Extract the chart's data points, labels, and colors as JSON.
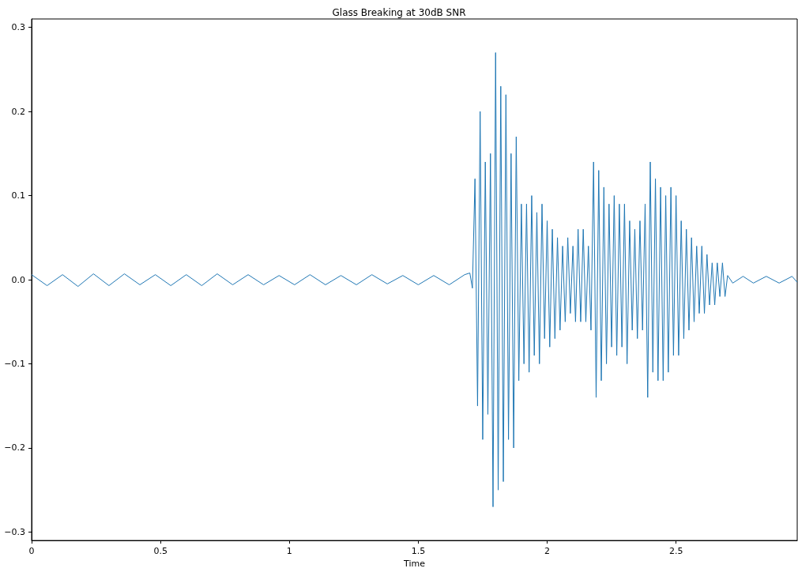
{
  "chart_data": {
    "type": "line",
    "title": "Glass Breaking at 30dB SNR",
    "xlabel": "Time",
    "x": [
      0,
      0.06,
      0.12,
      0.18,
      0.24,
      0.3,
      0.36,
      0.42,
      0.48,
      0.54,
      0.6,
      0.66,
      0.72,
      0.78,
      0.84,
      0.9,
      0.96,
      1.02,
      1.08,
      1.14,
      1.2,
      1.26,
      1.32,
      1.38,
      1.44,
      1.5,
      1.56,
      1.62,
      1.68,
      1.7,
      1.71,
      1.72,
      1.73,
      1.74,
      1.75,
      1.76,
      1.77,
      1.78,
      1.79,
      1.8,
      1.81,
      1.82,
      1.83,
      1.84,
      1.85,
      1.86,
      1.87,
      1.88,
      1.89,
      1.9,
      1.91,
      1.92,
      1.93,
      1.94,
      1.95,
      1.96,
      1.97,
      1.98,
      1.99,
      2,
      2.01,
      2.02,
      2.03,
      2.04,
      2.05,
      2.06,
      2.07,
      2.08,
      2.09,
      2.1,
      2.11,
      2.12,
      2.13,
      2.14,
      2.15,
      2.16,
      2.17,
      2.18,
      2.19,
      2.2,
      2.21,
      2.22,
      2.23,
      2.24,
      2.25,
      2.26,
      2.27,
      2.28,
      2.29,
      2.3,
      2.31,
      2.32,
      2.33,
      2.34,
      2.35,
      2.36,
      2.37,
      2.38,
      2.39,
      2.4,
      2.41,
      2.42,
      2.43,
      2.44,
      2.45,
      2.46,
      2.47,
      2.48,
      2.49,
      2.5,
      2.51,
      2.52,
      2.53,
      2.54,
      2.55,
      2.56,
      2.57,
      2.58,
      2.59,
      2.6,
      2.61,
      2.62,
      2.63,
      2.64,
      2.65,
      2.66,
      2.67,
      2.68,
      2.69,
      2.7,
      2.72,
      2.76,
      2.8,
      2.85,
      2.9,
      2.95,
      2.97
    ],
    "series": [
      {
        "color": "#1f77b4",
        "values": [
          0.006,
          -0.007,
          0.006,
          -0.008,
          0.007,
          -0.007,
          0.007,
          -0.006,
          0.006,
          -0.007,
          0.006,
          -0.007,
          0.007,
          -0.006,
          0.006,
          -0.006,
          0.005,
          -0.006,
          0.006,
          -0.006,
          0.005,
          -0.006,
          0.006,
          -0.005,
          0.005,
          -0.006,
          0.005,
          -0.006,
          0.006,
          0.008,
          -0.01,
          0.12,
          -0.15,
          0.2,
          -0.19,
          0.14,
          -0.16,
          0.15,
          -0.27,
          0.27,
          -0.25,
          0.23,
          -0.24,
          0.22,
          -0.19,
          0.15,
          -0.2,
          0.17,
          -0.12,
          0.09,
          -0.1,
          0.09,
          -0.11,
          0.1,
          -0.09,
          0.08,
          -0.1,
          0.09,
          -0.07,
          0.07,
          -0.08,
          0.06,
          -0.07,
          0.05,
          -0.06,
          0.04,
          -0.05,
          0.05,
          -0.04,
          0.04,
          -0.05,
          0.06,
          -0.05,
          0.06,
          -0.05,
          0.04,
          -0.06,
          0.14,
          -0.14,
          0.13,
          -0.12,
          0.11,
          -0.1,
          0.09,
          -0.08,
          0.1,
          -0.09,
          0.09,
          -0.08,
          0.09,
          -0.1,
          0.07,
          -0.06,
          0.06,
          -0.07,
          0.07,
          -0.06,
          0.09,
          -0.14,
          0.14,
          -0.11,
          0.12,
          -0.12,
          0.11,
          -0.12,
          0.1,
          -0.11,
          0.11,
          -0.09,
          0.1,
          -0.09,
          0.07,
          -0.07,
          0.06,
          -0.06,
          0.05,
          -0.05,
          0.04,
          -0.04,
          0.04,
          -0.04,
          0.03,
          -0.03,
          0.02,
          -0.03,
          0.02,
          -0.02,
          0.02,
          -0.02,
          0.005,
          -0.004,
          0.004,
          -0.004,
          0.004,
          -0.004,
          0.004,
          -0.003
        ]
      }
    ],
    "xlim": [
      0,
      2.97
    ],
    "xticks": [
      0,
      0.5,
      1,
      1.5,
      2,
      2.5
    ],
    "ylim": [
      -0.31,
      0.31
    ],
    "yticks": [
      {
        "value": -0.3,
        "label": "−0.3"
      },
      {
        "value": -0.2,
        "label": "−0.2"
      },
      {
        "value": -0.1,
        "label": "−0.1"
      },
      {
        "value": 0,
        "label": "0.0"
      },
      {
        "value": 0.1,
        "label": "0.1"
      },
      {
        "value": 0.2,
        "label": "0.2"
      },
      {
        "value": 0.3,
        "label": "0.3"
      }
    ],
    "grid": false,
    "marker": "none",
    "line_style": "solid"
  }
}
